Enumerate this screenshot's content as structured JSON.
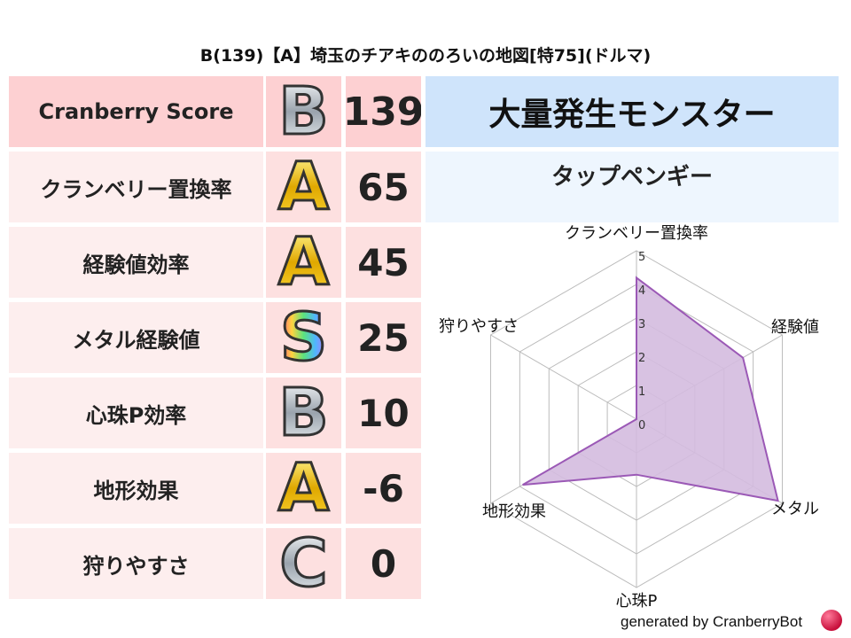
{
  "title": "B(139)【A】埼玉のチアキののろいの地図[特75](ドルマ)",
  "table": {
    "rows": [
      {
        "label": "Cranberry Score",
        "grade": "B",
        "score": "139",
        "bg": "#fdd0d2",
        "gbg": "#fdd0d2"
      },
      {
        "label": "クランベリー置換率",
        "grade": "A",
        "score": "65",
        "bg": "#fdeeee",
        "gbg": "#fde0e0"
      },
      {
        "label": "経験値効率",
        "grade": "A",
        "score": "45",
        "bg": "#fdeeee",
        "gbg": "#fde0e0"
      },
      {
        "label": "メタル経験値",
        "grade": "S",
        "score": "25",
        "bg": "#fdeeee",
        "gbg": "#fde0e0"
      },
      {
        "label": "心珠P効率",
        "grade": "B",
        "score": "10",
        "bg": "#fdeeee",
        "gbg": "#fde0e0"
      },
      {
        "label": "地形効果",
        "grade": "A",
        "score": "-6",
        "bg": "#fdeeee",
        "gbg": "#fde0e0"
      },
      {
        "label": "狩りやすさ",
        "grade": "C",
        "score": "0",
        "bg": "#fdeeee",
        "gbg": "#fde0e0"
      }
    ]
  },
  "monster": {
    "header": "大量発生モンスター",
    "name": "タップペンギー"
  },
  "chart_data": {
    "type": "radar",
    "categories": [
      "クランベリー置換率",
      "経験値",
      "メタル",
      "心珠P",
      "地形効果",
      "狩りやすさ"
    ],
    "values": [
      4.2,
      3.65,
      4.85,
      1.65,
      3.9,
      0
    ],
    "rlim": [
      0,
      5
    ],
    "ticks": [
      "0",
      "1",
      "2",
      "3",
      "4",
      "5"
    ],
    "grid": true,
    "fill_color": "#d4bbdf",
    "line_color": "#9b59b6"
  },
  "footer": "generated by CranberryBot"
}
